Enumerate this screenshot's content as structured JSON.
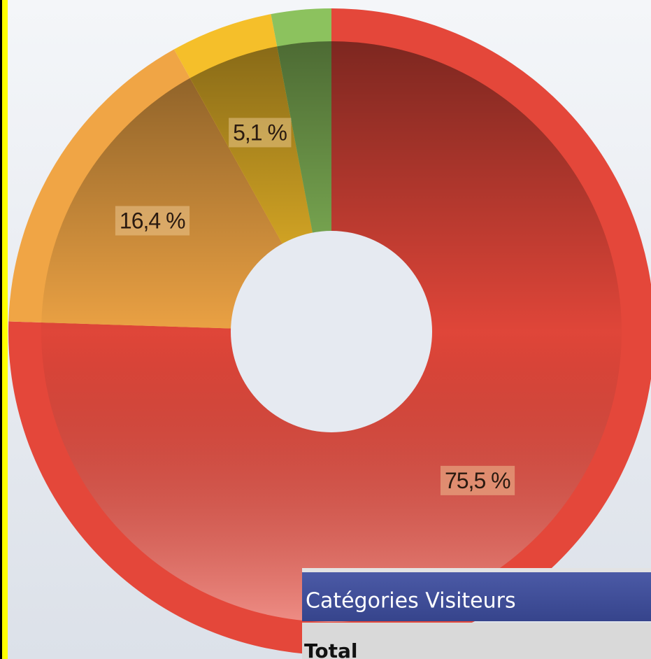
{
  "chart_data": {
    "type": "pie",
    "donut": true,
    "values": [
      75.5,
      16.4,
      5.1,
      3.0
    ],
    "value_labels": [
      "75,5 %",
      "16,4 %",
      "5,1 %",
      null
    ],
    "colors": [
      "#e4473a",
      "#f0a545",
      "#f5bf2a",
      "#8cc25e"
    ],
    "start_angle": 0,
    "direction": "clockwise",
    "legend": {
      "title": "Catégories Visiteurs",
      "items": [
        "Total"
      ]
    }
  }
}
